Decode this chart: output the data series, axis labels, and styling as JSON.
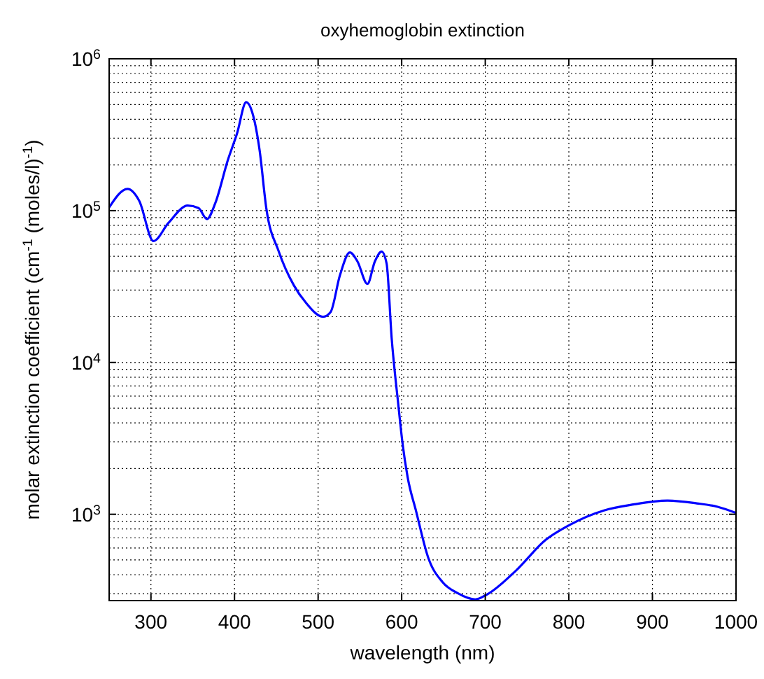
{
  "chart_data": {
    "type": "line",
    "title": "oxyhemoglobin extinction",
    "xlabel": "wavelength (nm)",
    "ylabel": "molar extinction coefficient (cm$^{-1}$ (moles/l)$^{-1}$)",
    "log": "y",
    "grid": true,
    "xlim": [
      250,
      1000
    ],
    "ylim": [
      270,
      1000000
    ],
    "xticks": [
      300,
      400,
      500,
      600,
      700,
      800,
      900,
      1000
    ],
    "yticks": [
      {
        "value": 1000,
        "label": "10$^{3}$"
      },
      {
        "value": 10000,
        "label": "10$^{4}$"
      },
      {
        "value": 100000,
        "label": "10$^{5}$"
      },
      {
        "value": 1000000,
        "label": "10$^{6}$"
      }
    ],
    "series": [
      {
        "color": "#0000ff",
        "x": [
          250,
          272,
          286,
          303,
          321,
          344,
          357,
          367,
          377,
          392,
          403,
          414,
          421,
          430,
          438,
          453,
          471,
          485,
          506,
          515,
          526,
          538,
          547,
          559,
          568,
          576,
          582,
          588,
          596,
          601,
          607,
          617,
          632,
          649,
          667,
          688,
          702,
          737,
          772,
          801,
          842,
          877,
          918,
          953,
          978,
          1000
        ],
        "values": [
          105000,
          139000,
          116000,
          63000,
          83000,
          108000,
          104000,
          88000,
          112000,
          215000,
          322000,
          518000,
          447000,
          250000,
          104000,
          53700,
          32200,
          24900,
          20000,
          21500,
          37300,
          53000,
          46400,
          32900,
          46400,
          53700,
          44700,
          14500,
          5250,
          2940,
          1770,
          1060,
          513,
          357,
          302,
          275,
          296,
          427,
          676,
          851,
          1060,
          1160,
          1230,
          1180,
          1120,
          1020
        ]
      }
    ]
  }
}
